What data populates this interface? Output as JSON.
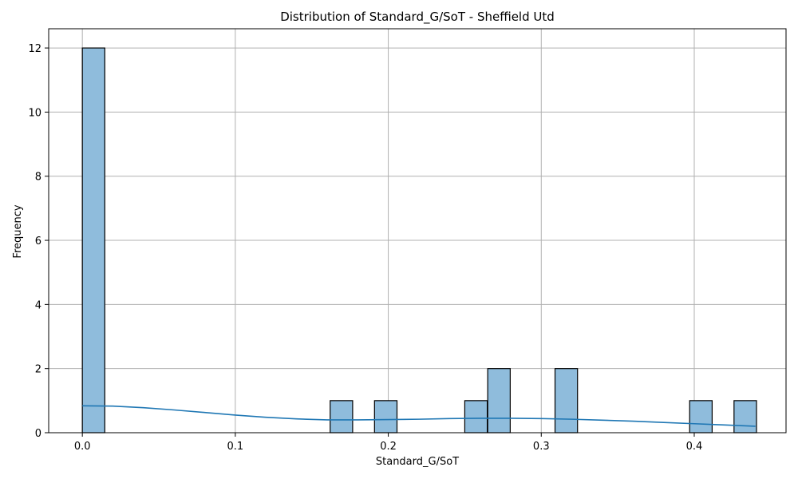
{
  "chart_data": {
    "type": "bar",
    "subtype": "histogram",
    "title": "Distribution of Standard_G/SoT - Sheffield Utd",
    "xlabel": "Standard_G/SoT",
    "ylabel": "Frequency",
    "xlim": [
      -0.022,
      0.46
    ],
    "ylim": [
      0,
      12.6
    ],
    "xticks": [
      0.0,
      0.1,
      0.2,
      0.3,
      0.4
    ],
    "xtick_labels": [
      "0.0",
      "0.1",
      "0.2",
      "0.3",
      "0.4"
    ],
    "yticks": [
      0,
      2,
      4,
      6,
      8,
      10,
      12
    ],
    "ytick_labels": [
      "0",
      "2",
      "4",
      "6",
      "8",
      "10",
      "12"
    ],
    "grid": true,
    "bin_width": 0.0147,
    "bins": [
      {
        "x0": 0.0,
        "count": 12
      },
      {
        "x0": 0.162,
        "count": 1
      },
      {
        "x0": 0.191,
        "count": 1
      },
      {
        "x0": 0.25,
        "count": 1
      },
      {
        "x0": 0.265,
        "count": 2
      },
      {
        "x0": 0.309,
        "count": 2
      },
      {
        "x0": 0.397,
        "count": 1
      },
      {
        "x0": 0.426,
        "count": 1
      }
    ],
    "kde": {
      "x": [
        0.0,
        0.02,
        0.04,
        0.06,
        0.08,
        0.1,
        0.12,
        0.14,
        0.16,
        0.18,
        0.2,
        0.22,
        0.24,
        0.26,
        0.28,
        0.3,
        0.32,
        0.34,
        0.36,
        0.38,
        0.4,
        0.42,
        0.44
      ],
      "y": [
        0.84,
        0.83,
        0.78,
        0.71,
        0.63,
        0.55,
        0.48,
        0.43,
        0.4,
        0.4,
        0.41,
        0.42,
        0.44,
        0.45,
        0.45,
        0.44,
        0.42,
        0.39,
        0.36,
        0.32,
        0.28,
        0.24,
        0.2
      ]
    },
    "colors": {
      "bar_fill": "#8fbcdc",
      "bar_edge": "#000000",
      "kde_line": "#1f77b4",
      "grid": "#b0b0b0"
    }
  }
}
